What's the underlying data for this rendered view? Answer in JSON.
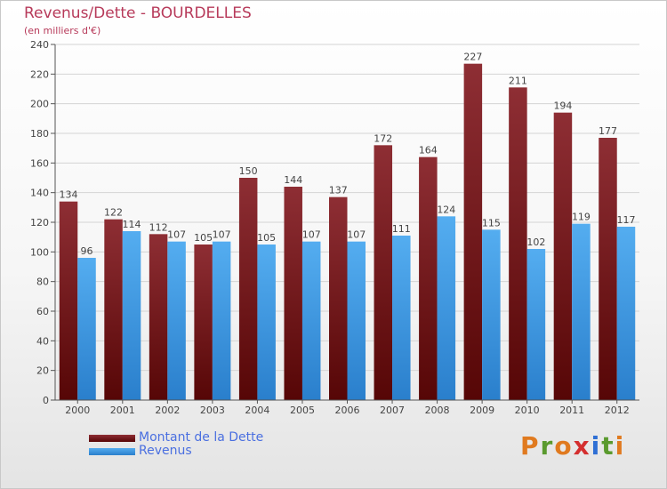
{
  "header": {
    "title": "Revenus/Dette - BOURDELLES",
    "subtitle": "(en milliers d'€)"
  },
  "legend": [
    {
      "label": "Montant de la Dette",
      "color": "#7a1818"
    },
    {
      "label": "Revenus",
      "color": "#3f9be6"
    }
  ],
  "logo": {
    "text": "Proxiti",
    "letters": [
      {
        "ch": "P",
        "color": "#e07a1f"
      },
      {
        "ch": "r",
        "color": "#5a9a2e"
      },
      {
        "ch": "o",
        "color": "#e07a1f"
      },
      {
        "ch": "x",
        "color": "#d42f2f"
      },
      {
        "ch": "i",
        "color": "#2f6fd4"
      },
      {
        "ch": "t",
        "color": "#5a9a2e"
      },
      {
        "ch": "i",
        "color": "#e07a1f"
      }
    ]
  },
  "chart_data": {
    "type": "bar",
    "title": "Revenus/Dette - BOURDELLES",
    "subtitle": "(en milliers d'€)",
    "xlabel": "",
    "ylabel": "",
    "ylim": [
      0,
      240
    ],
    "yticks": [
      0,
      20,
      40,
      60,
      80,
      100,
      120,
      140,
      160,
      180,
      200,
      220,
      240
    ],
    "grid": true,
    "legend_position": "bottom-left",
    "categories": [
      "2000",
      "2001",
      "2002",
      "2003",
      "2004",
      "2005",
      "2006",
      "2007",
      "2008",
      "2009",
      "2010",
      "2011",
      "2012"
    ],
    "series": [
      {
        "name": "Montant de la Dette",
        "color": "#7a1818",
        "values": [
          134,
          122,
          112,
          105,
          150,
          144,
          137,
          172,
          164,
          227,
          211,
          194,
          177
        ]
      },
      {
        "name": "Revenus",
        "color": "#3f9be6",
        "values": [
          96,
          114,
          107,
          107,
          105,
          107,
          107,
          111,
          124,
          115,
          102,
          119,
          117
        ]
      }
    ]
  }
}
